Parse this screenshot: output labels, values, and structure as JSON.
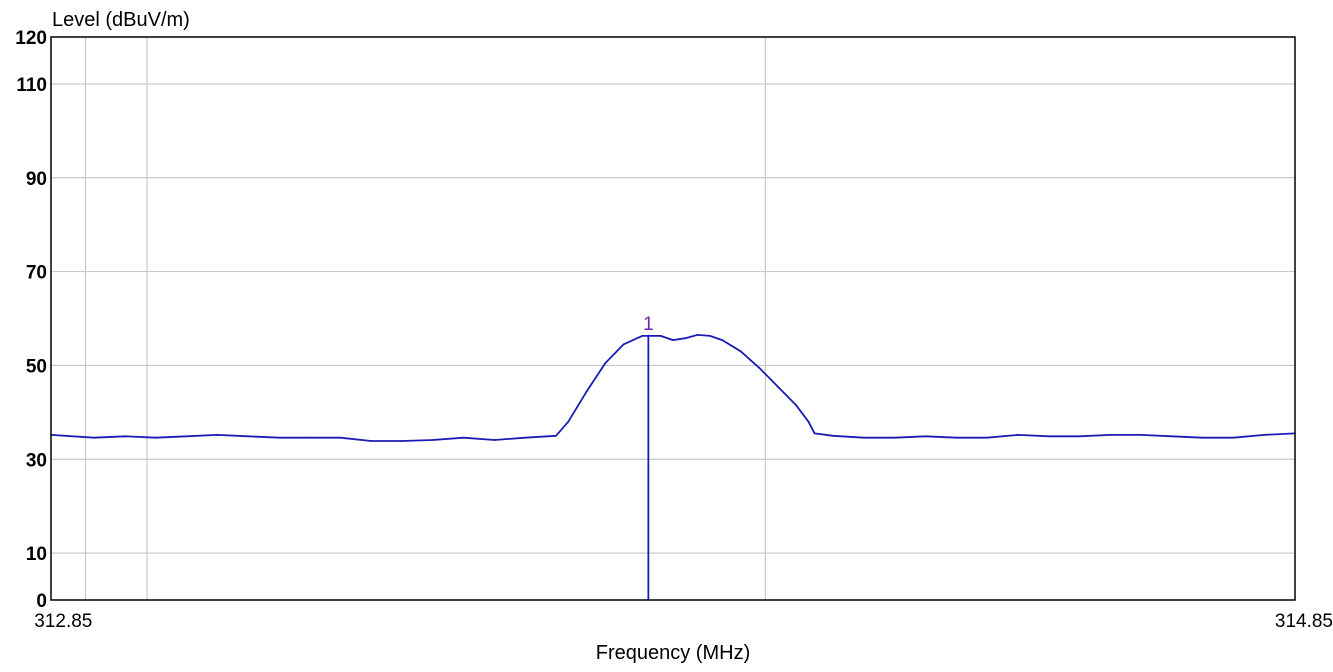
{
  "chart_data": {
    "type": "line",
    "ylabel": "Level (dBuV/m)",
    "xlabel": "Frequency (MHz)",
    "ylim": [
      0,
      120
    ],
    "xlim": [
      312.83,
      314.85
    ],
    "y_ticks": [
      {
        "value": 0,
        "label": "0"
      },
      {
        "value": 10,
        "label": "10"
      },
      {
        "value": 30,
        "label": "30"
      },
      {
        "value": 50,
        "label": "50"
      },
      {
        "value": 70,
        "label": "70"
      },
      {
        "value": 90,
        "label": "90"
      },
      {
        "value": 110,
        "label": "110"
      },
      {
        "value": 120,
        "label": "120"
      }
    ],
    "x_ticks": [
      {
        "value": 312.85,
        "label": "312.85"
      },
      {
        "value": 314.85,
        "label": "314.85"
      }
    ],
    "x_gridlines": [
      312.886,
      312.986,
      313.99
    ],
    "grid": true,
    "series": [
      {
        "color": "#1c1cb4",
        "points": [
          [
            312.83,
            35.2
          ],
          [
            312.9,
            34.6
          ],
          [
            312.95,
            34.9
          ],
          [
            313.0,
            34.6
          ],
          [
            313.05,
            34.9
          ],
          [
            313.1,
            35.2
          ],
          [
            313.15,
            34.9
          ],
          [
            313.2,
            34.6
          ],
          [
            313.25,
            34.6
          ],
          [
            313.3,
            34.6
          ],
          [
            313.35,
            33.9
          ],
          [
            313.4,
            33.9
          ],
          [
            313.45,
            34.1
          ],
          [
            313.5,
            34.6
          ],
          [
            313.55,
            34.1
          ],
          [
            313.6,
            34.6
          ],
          [
            313.65,
            35.0
          ],
          [
            313.67,
            38.0
          ],
          [
            313.7,
            44.5
          ],
          [
            313.73,
            50.5
          ],
          [
            313.76,
            54.5
          ],
          [
            313.79,
            56.3
          ],
          [
            313.82,
            56.3
          ],
          [
            313.84,
            55.4
          ],
          [
            313.86,
            55.8
          ],
          [
            313.88,
            56.5
          ],
          [
            313.9,
            56.3
          ],
          [
            313.92,
            55.4
          ],
          [
            313.95,
            53.0
          ],
          [
            313.98,
            49.5
          ],
          [
            314.01,
            45.5
          ],
          [
            314.04,
            41.5
          ],
          [
            314.06,
            38.0
          ],
          [
            314.07,
            35.5
          ],
          [
            314.1,
            35.0
          ],
          [
            314.15,
            34.6
          ],
          [
            314.2,
            34.6
          ],
          [
            314.25,
            34.9
          ],
          [
            314.3,
            34.6
          ],
          [
            314.35,
            34.6
          ],
          [
            314.4,
            35.2
          ],
          [
            314.45,
            34.9
          ],
          [
            314.5,
            34.9
          ],
          [
            314.55,
            35.2
          ],
          [
            314.6,
            35.2
          ],
          [
            314.65,
            34.9
          ],
          [
            314.7,
            34.6
          ],
          [
            314.75,
            34.6
          ],
          [
            314.8,
            35.2
          ],
          [
            314.85,
            35.5
          ]
        ]
      }
    ],
    "markers": [
      {
        "label": "1",
        "x": 313.8,
        "y": 56.3,
        "color": "#1c1cb4",
        "label_color": "#6a2aa8"
      }
    ]
  }
}
